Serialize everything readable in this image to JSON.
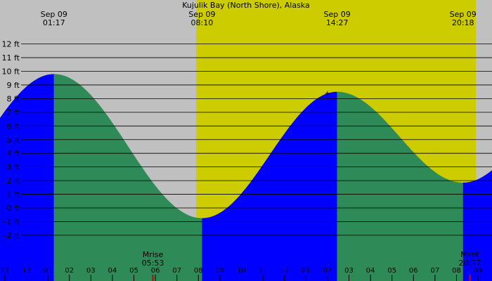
{
  "chart_data": {
    "type": "area",
    "title": "Kujulik Bay (North Shore), Alaska",
    "y_unit": "ft",
    "ylim": [
      -2.5,
      12.7
    ],
    "y_ticks": [
      {
        "value": 12,
        "label": "12 ft"
      },
      {
        "value": 11,
        "label": "11 ft"
      },
      {
        "value": 10,
        "label": "10 ft"
      },
      {
        "value": 9,
        "label": "9 ft"
      },
      {
        "value": 8,
        "label": "8 ft"
      },
      {
        "value": 7,
        "label": "7 ft"
      },
      {
        "value": 6,
        "label": "6 ft"
      },
      {
        "value": 5,
        "label": "5 ft"
      },
      {
        "value": 4,
        "label": "4 ft"
      },
      {
        "value": 3,
        "label": "3 ft"
      },
      {
        "value": 2,
        "label": "2 ft"
      },
      {
        "value": 1,
        "label": "1 ft"
      },
      {
        "value": 0,
        "label": "0 ft"
      },
      {
        "value": -1,
        "label": "-1 ft"
      },
      {
        "value": -2,
        "label": "-2 ft"
      }
    ],
    "x_range_hours": [
      -1.16,
      25.2
    ],
    "x_ticks": [
      {
        "hour": -1,
        "label": "11"
      },
      {
        "hour": 0,
        "label": "12"
      },
      {
        "hour": 1,
        "label": "01"
      },
      {
        "hour": 2,
        "label": "02"
      },
      {
        "hour": 3,
        "label": "03"
      },
      {
        "hour": 4,
        "label": "04"
      },
      {
        "hour": 5,
        "label": "05"
      },
      {
        "hour": 6,
        "label": "06"
      },
      {
        "hour": 7,
        "label": "07"
      },
      {
        "hour": 8,
        "label": "08"
      },
      {
        "hour": 9,
        "label": "09"
      },
      {
        "hour": 10,
        "label": "10"
      },
      {
        "hour": 11,
        "label": "11"
      },
      {
        "hour": 12,
        "label": "12"
      },
      {
        "hour": 13,
        "label": "01"
      },
      {
        "hour": 14,
        "label": "02"
      },
      {
        "hour": 15,
        "label": "03"
      },
      {
        "hour": 16,
        "label": "04"
      },
      {
        "hour": 17,
        "label": "05"
      },
      {
        "hour": 18,
        "label": "06"
      },
      {
        "hour": 19,
        "label": "07"
      },
      {
        "hour": 20,
        "label": "08"
      },
      {
        "hour": 21,
        "label": "09"
      }
    ],
    "tide_extremes": [
      {
        "date": "Sep 09",
        "time": "01:17",
        "hour": 1.283,
        "height_ft": 9.8
      },
      {
        "date": "Sep 09",
        "time": "08:10",
        "hour": 8.167,
        "height_ft": -0.75
      },
      {
        "date": "Sep 09",
        "time": "14:27",
        "hour": 14.45,
        "height_ft": 8.5
      },
      {
        "date": "Sep 09",
        "time": "20:18",
        "hour": 20.3,
        "height_ft": 1.85
      }
    ],
    "tide_before": {
      "hour": -5.0,
      "height_ft": 0.5
    },
    "tide_after": {
      "hour": 26.5,
      "height_ft": 10.0
    },
    "daylight": {
      "start_hour": 7.9,
      "end_hour": 20.9
    },
    "moonrise": {
      "label": "Mrise",
      "time": "05:53",
      "hour": 5.883
    },
    "moonset": {
      "label": "Mset",
      "time": "20:37",
      "hour": 20.617
    },
    "now_hour": 14.0,
    "colors": {
      "night": "#c0c0c0",
      "day": "#cccc00",
      "rising": "#0000ff",
      "falling": "#2e8b57",
      "grid": "#000000",
      "moon_marker": "#cc0000"
    }
  }
}
